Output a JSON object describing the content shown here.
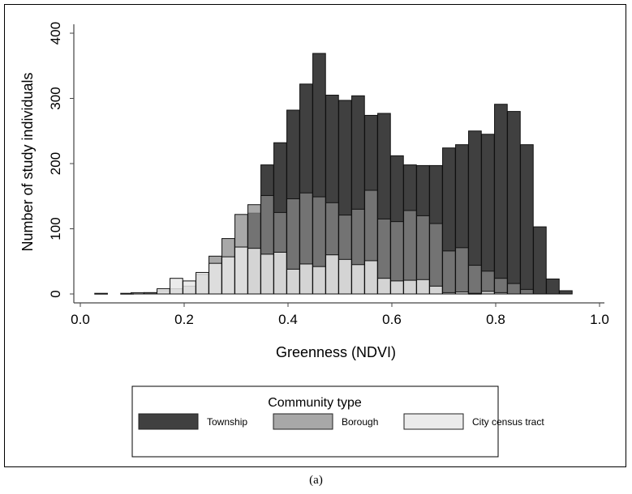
{
  "chart_data": {
    "type": "bar",
    "subtype": "overlaid histogram",
    "xlabel": "Greenness (NDVI)",
    "ylabel": "Number of study individuals",
    "xlim": [
      0.0,
      1.0
    ],
    "ylim": [
      0,
      400
    ],
    "xticks": [
      "0.0",
      "0.2",
      "0.4",
      "0.6",
      "0.8",
      "1.0"
    ],
    "yticks": [
      "0",
      "100",
      "200",
      "300",
      "400"
    ],
    "bin_width": 0.0245,
    "grid": false,
    "legend": {
      "title": "Community type",
      "placement": "bottom"
    },
    "series": [
      {
        "name": "Township",
        "color": "#404040",
        "x": [
          0.04,
          0.09,
          0.135,
          0.335,
          0.36,
          0.385,
          0.41,
          0.435,
          0.46,
          0.485,
          0.51,
          0.535,
          0.56,
          0.585,
          0.61,
          0.635,
          0.66,
          0.685,
          0.71,
          0.735,
          0.76,
          0.785,
          0.81,
          0.835,
          0.86,
          0.885,
          0.91,
          0.935
        ],
        "values": [
          1,
          1,
          2,
          124,
          198,
          232,
          282,
          322,
          369,
          305,
          297,
          304,
          274,
          277,
          212,
          198,
          197,
          197,
          224,
          229,
          250,
          245,
          291,
          280,
          229,
          103,
          23,
          5
        ]
      },
      {
        "name": "Borough",
        "color": "#a8a8a8",
        "x": [
          0.11,
          0.135,
          0.16,
          0.185,
          0.21,
          0.235,
          0.26,
          0.285,
          0.31,
          0.335,
          0.36,
          0.385,
          0.41,
          0.435,
          0.46,
          0.485,
          0.51,
          0.535,
          0.56,
          0.585,
          0.61,
          0.635,
          0.66,
          0.685,
          0.71,
          0.735,
          0.76,
          0.785,
          0.81,
          0.835,
          0.86
        ],
        "values": [
          2,
          2,
          5,
          8,
          12,
          30,
          58,
          85,
          122,
          137,
          151,
          125,
          146,
          155,
          149,
          140,
          121,
          130,
          159,
          115,
          111,
          128,
          120,
          108,
          66,
          71,
          44,
          35,
          24,
          16,
          7
        ]
      },
      {
        "name": "City census tract",
        "color": "#ebebeb",
        "x": [
          0.16,
          0.185,
          0.21,
          0.235,
          0.26,
          0.285,
          0.31,
          0.335,
          0.36,
          0.385,
          0.41,
          0.435,
          0.46,
          0.485,
          0.51,
          0.535,
          0.56,
          0.585,
          0.61,
          0.635,
          0.66,
          0.685,
          0.71,
          0.735,
          0.76,
          0.785,
          0.81
        ],
        "values": [
          8,
          24,
          20,
          33,
          47,
          57,
          72,
          70,
          61,
          64,
          38,
          46,
          42,
          60,
          53,
          45,
          51,
          24,
          20,
          21,
          22,
          12,
          2,
          3,
          1,
          4,
          2
        ]
      }
    ]
  },
  "caption": "(a)"
}
